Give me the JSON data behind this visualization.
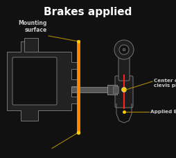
{
  "title": "Brakes applied",
  "title_color": "#ffffff",
  "title_fontsize": 11,
  "bg_color": "#111111",
  "outline_color": "#777777",
  "orange_line_color": "#ff8800",
  "annotation_line_color": "#aa8800",
  "annotation_text_color": "#cccccc",
  "dot_color": "#ffcc00",
  "label_mounting": "Mounting\nsurface",
  "label_clevis": "Center of\nclevis pin",
  "label_applied": "Applied Brake",
  "fig_w": 2.55,
  "fig_h": 2.29,
  "dpi": 100
}
